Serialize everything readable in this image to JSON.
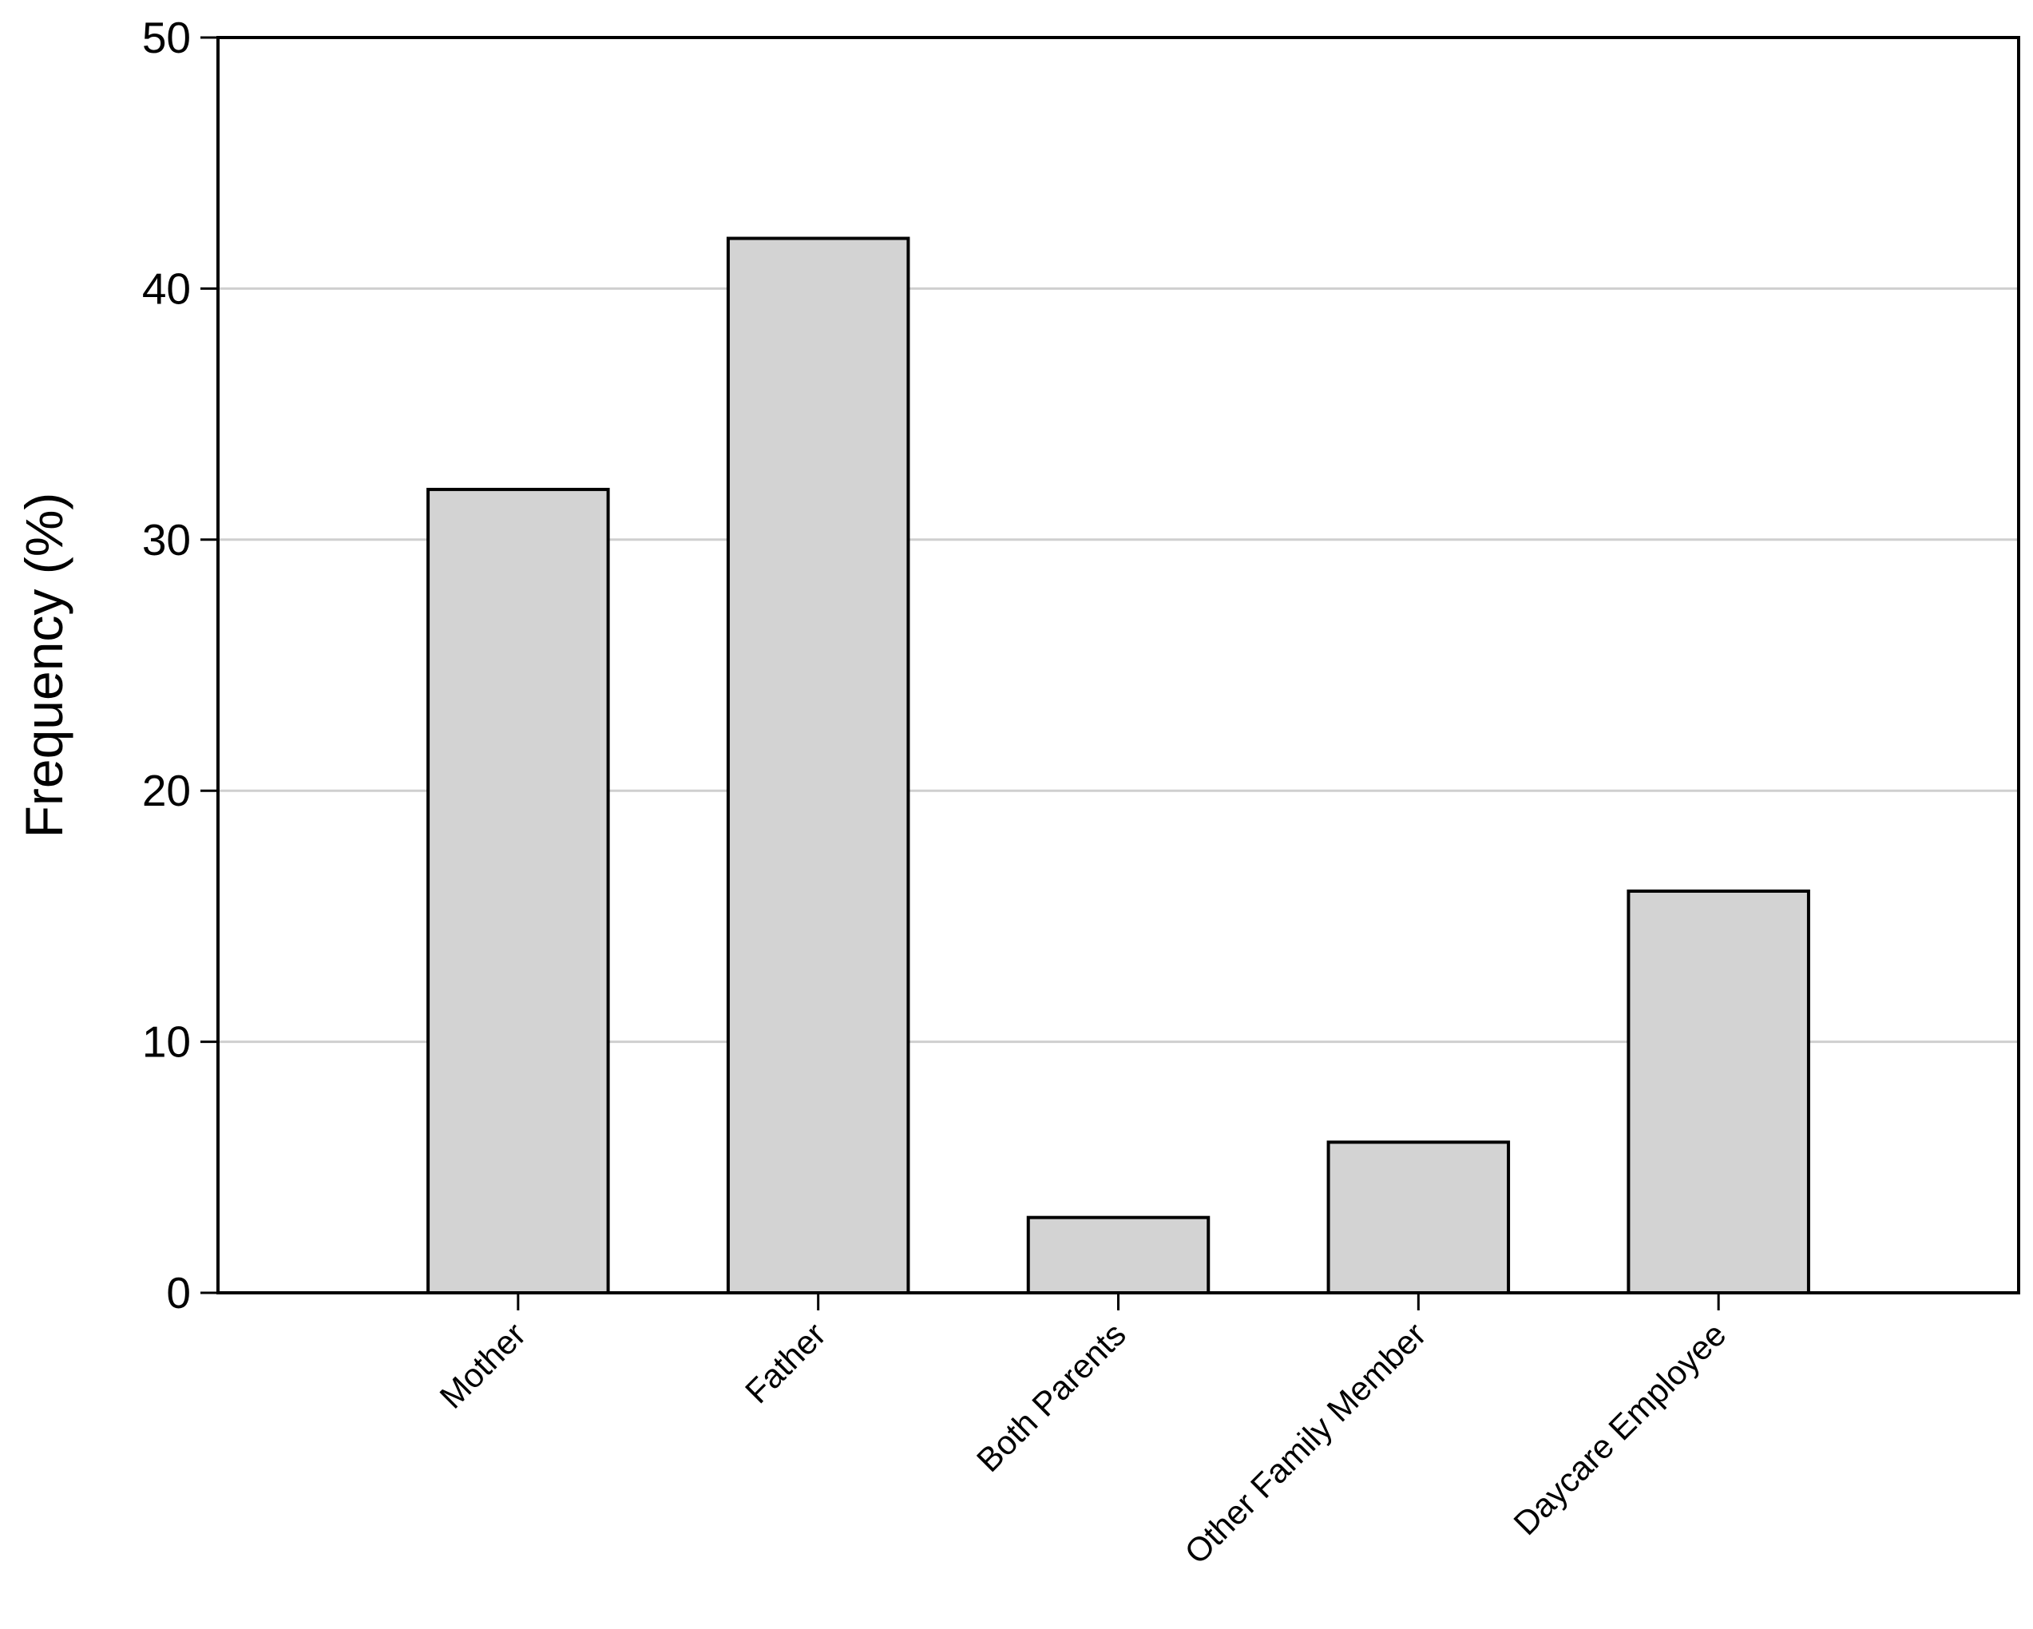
{
  "chart_data": {
    "type": "bar",
    "y_label": "Frequency (%)",
    "categories": [
      "Mother",
      "Father",
      "Both Parents",
      "Other Family Member",
      "Daycare Employee"
    ],
    "values": [
      32,
      42,
      3,
      6,
      16
    ],
    "color": "#d3d3d3",
    "ylim": [
      0,
      50
    ],
    "yticks": [
      0,
      10,
      20,
      30,
      40,
      50
    ],
    "grid": true
  }
}
